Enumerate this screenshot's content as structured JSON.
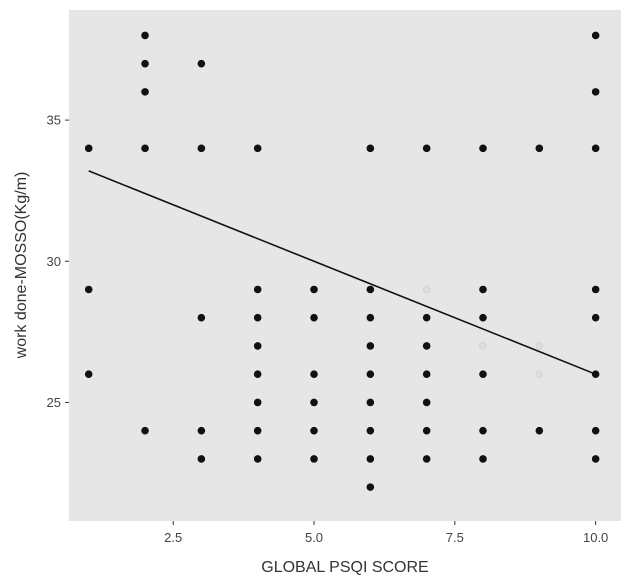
{
  "chart_data": {
    "type": "scatter",
    "title": "",
    "xlabel": "GLOBAL PSQI SCORE",
    "ylabel": "work done-MOSSO(Kg/m)",
    "xlim": [
      0.65,
      10.45
    ],
    "ylim": [
      20.8,
      38.9
    ],
    "x_ticks": [
      2.5,
      5.0,
      7.5,
      10.0
    ],
    "x_tick_labels": [
      "2.5",
      "5.0",
      "7.5",
      "10.0"
    ],
    "y_ticks": [
      25,
      30,
      35
    ],
    "y_tick_labels": [
      "25",
      "30",
      "35"
    ],
    "grid": false,
    "legend": "none",
    "panel_background": "#e6e6e6",
    "point_color": "#111111",
    "line_color": "#111111",
    "faint_point_color": "#dddddd",
    "points": [
      {
        "x": 1,
        "y": 34
      },
      {
        "x": 1,
        "y": 29
      },
      {
        "x": 1,
        "y": 26
      },
      {
        "x": 2,
        "y": 38
      },
      {
        "x": 2,
        "y": 37
      },
      {
        "x": 2,
        "y": 36
      },
      {
        "x": 2,
        "y": 34
      },
      {
        "x": 2,
        "y": 24
      },
      {
        "x": 3,
        "y": 37
      },
      {
        "x": 3,
        "y": 34
      },
      {
        "x": 3,
        "y": 28
      },
      {
        "x": 3,
        "y": 24
      },
      {
        "x": 3,
        "y": 23
      },
      {
        "x": 4,
        "y": 34
      },
      {
        "x": 4,
        "y": 29
      },
      {
        "x": 4,
        "y": 28
      },
      {
        "x": 4,
        "y": 27
      },
      {
        "x": 4,
        "y": 26
      },
      {
        "x": 4,
        "y": 25
      },
      {
        "x": 4,
        "y": 24
      },
      {
        "x": 4,
        "y": 23
      },
      {
        "x": 5,
        "y": 29
      },
      {
        "x": 5,
        "y": 28
      },
      {
        "x": 5,
        "y": 26
      },
      {
        "x": 5,
        "y": 25
      },
      {
        "x": 5,
        "y": 24
      },
      {
        "x": 5,
        "y": 23
      },
      {
        "x": 6,
        "y": 34
      },
      {
        "x": 6,
        "y": 29
      },
      {
        "x": 6,
        "y": 28
      },
      {
        "x": 6,
        "y": 27
      },
      {
        "x": 6,
        "y": 26
      },
      {
        "x": 6,
        "y": 25
      },
      {
        "x": 6,
        "y": 24
      },
      {
        "x": 6,
        "y": 23
      },
      {
        "x": 6,
        "y": 22
      },
      {
        "x": 7,
        "y": 34
      },
      {
        "x": 7,
        "y": 28
      },
      {
        "x": 7,
        "y": 27
      },
      {
        "x": 7,
        "y": 26
      },
      {
        "x": 7,
        "y": 25
      },
      {
        "x": 7,
        "y": 24
      },
      {
        "x": 7,
        "y": 23
      },
      {
        "x": 8,
        "y": 34
      },
      {
        "x": 8,
        "y": 29
      },
      {
        "x": 8,
        "y": 28
      },
      {
        "x": 8,
        "y": 26
      },
      {
        "x": 8,
        "y": 24
      },
      {
        "x": 8,
        "y": 23
      },
      {
        "x": 9,
        "y": 34
      },
      {
        "x": 9,
        "y": 24
      },
      {
        "x": 10,
        "y": 38
      },
      {
        "x": 10,
        "y": 36
      },
      {
        "x": 10,
        "y": 34
      },
      {
        "x": 10,
        "y": 29
      },
      {
        "x": 10,
        "y": 28
      },
      {
        "x": 10,
        "y": 26
      },
      {
        "x": 10,
        "y": 24
      },
      {
        "x": 10,
        "y": 23
      }
    ],
    "faint_points": [
      {
        "x": 7,
        "y": 29
      },
      {
        "x": 8,
        "y": 27
      },
      {
        "x": 9,
        "y": 27
      },
      {
        "x": 9,
        "y": 26
      }
    ],
    "trend_line": {
      "x": [
        1,
        10
      ],
      "y": [
        33.2,
        26.0
      ]
    }
  }
}
